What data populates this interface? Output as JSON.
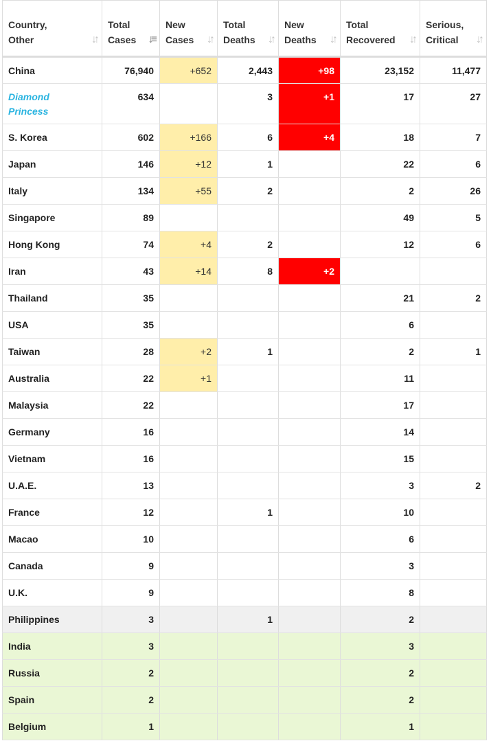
{
  "table": {
    "headers": [
      {
        "line1": "Country,",
        "line2": "Other",
        "icon": "sort-icon",
        "icon_glyph": "↓↑"
      },
      {
        "line1": "Total",
        "line2": "Cases",
        "icon": "sort-desc-icon",
        "icon_glyph": "↓≡"
      },
      {
        "line1": "New",
        "line2": "Cases",
        "icon": "sort-icon",
        "icon_glyph": "↓↑"
      },
      {
        "line1": "Total",
        "line2": "Deaths",
        "icon": "sort-icon",
        "icon_glyph": "↓↑"
      },
      {
        "line1": "New",
        "line2": "Deaths",
        "icon": "sort-icon",
        "icon_glyph": "↓↑"
      },
      {
        "line1": "Total",
        "line2": "Recovered",
        "icon": "sort-icon",
        "icon_glyph": "↓↑"
      },
      {
        "line1": "Serious,",
        "line2": "Critical",
        "icon": "sort-icon",
        "icon_glyph": "↓↑"
      }
    ],
    "rows": [
      {
        "country": "China",
        "total_cases": "76,940",
        "new_cases": "+652",
        "total_deaths": "2,443",
        "new_deaths": "+98",
        "total_recovered": "23,152",
        "serious": "11,477",
        "style": ""
      },
      {
        "country_line1": "Diamond",
        "country_line2": "Princess",
        "is_link": true,
        "total_cases": "634",
        "new_cases": "",
        "total_deaths": "3",
        "new_deaths": "+1",
        "total_recovered": "17",
        "serious": "27",
        "style": ""
      },
      {
        "country": "S. Korea",
        "total_cases": "602",
        "new_cases": "+166",
        "total_deaths": "6",
        "new_deaths": "+4",
        "total_recovered": "18",
        "serious": "7",
        "style": ""
      },
      {
        "country": "Japan",
        "total_cases": "146",
        "new_cases": "+12",
        "total_deaths": "1",
        "new_deaths": "",
        "total_recovered": "22",
        "serious": "6",
        "style": ""
      },
      {
        "country": "Italy",
        "total_cases": "134",
        "new_cases": "+55",
        "total_deaths": "2",
        "new_deaths": "",
        "total_recovered": "2",
        "serious": "26",
        "style": ""
      },
      {
        "country": "Singapore",
        "total_cases": "89",
        "new_cases": "",
        "total_deaths": "",
        "new_deaths": "",
        "total_recovered": "49",
        "serious": "5",
        "style": ""
      },
      {
        "country": "Hong Kong",
        "total_cases": "74",
        "new_cases": "+4",
        "total_deaths": "2",
        "new_deaths": "",
        "total_recovered": "12",
        "serious": "6",
        "style": ""
      },
      {
        "country": "Iran",
        "total_cases": "43",
        "new_cases": "+14",
        "total_deaths": "8",
        "new_deaths": "+2",
        "total_recovered": "",
        "serious": "",
        "style": ""
      },
      {
        "country": "Thailand",
        "total_cases": "35",
        "new_cases": "",
        "total_deaths": "",
        "new_deaths": "",
        "total_recovered": "21",
        "serious": "2",
        "style": ""
      },
      {
        "country": "USA",
        "total_cases": "35",
        "new_cases": "",
        "total_deaths": "",
        "new_deaths": "",
        "total_recovered": "6",
        "serious": "",
        "style": ""
      },
      {
        "country": "Taiwan",
        "total_cases": "28",
        "new_cases": "+2",
        "total_deaths": "1",
        "new_deaths": "",
        "total_recovered": "2",
        "serious": "1",
        "style": ""
      },
      {
        "country": "Australia",
        "total_cases": "22",
        "new_cases": "+1",
        "total_deaths": "",
        "new_deaths": "",
        "total_recovered": "11",
        "serious": "",
        "style": ""
      },
      {
        "country": "Malaysia",
        "total_cases": "22",
        "new_cases": "",
        "total_deaths": "",
        "new_deaths": "",
        "total_recovered": "17",
        "serious": "",
        "style": ""
      },
      {
        "country": "Germany",
        "total_cases": "16",
        "new_cases": "",
        "total_deaths": "",
        "new_deaths": "",
        "total_recovered": "14",
        "serious": "",
        "style": ""
      },
      {
        "country": "Vietnam",
        "total_cases": "16",
        "new_cases": "",
        "total_deaths": "",
        "new_deaths": "",
        "total_recovered": "15",
        "serious": "",
        "style": ""
      },
      {
        "country": "U.A.E.",
        "total_cases": "13",
        "new_cases": "",
        "total_deaths": "",
        "new_deaths": "",
        "total_recovered": "3",
        "serious": "2",
        "style": ""
      },
      {
        "country": "France",
        "total_cases": "12",
        "new_cases": "",
        "total_deaths": "1",
        "new_deaths": "",
        "total_recovered": "10",
        "serious": "",
        "style": ""
      },
      {
        "country": "Macao",
        "total_cases": "10",
        "new_cases": "",
        "total_deaths": "",
        "new_deaths": "",
        "total_recovered": "6",
        "serious": "",
        "style": ""
      },
      {
        "country": "Canada",
        "total_cases": "9",
        "new_cases": "",
        "total_deaths": "",
        "new_deaths": "",
        "total_recovered": "3",
        "serious": "",
        "style": ""
      },
      {
        "country": "U.K.",
        "total_cases": "9",
        "new_cases": "",
        "total_deaths": "",
        "new_deaths": "",
        "total_recovered": "8",
        "serious": "",
        "style": ""
      },
      {
        "country": "Philippines",
        "total_cases": "3",
        "new_cases": "",
        "total_deaths": "1",
        "new_deaths": "",
        "total_recovered": "2",
        "serious": "",
        "style": "gray"
      },
      {
        "country": "India",
        "total_cases": "3",
        "new_cases": "",
        "total_deaths": "",
        "new_deaths": "",
        "total_recovered": "3",
        "serious": "",
        "style": "green"
      },
      {
        "country": "Russia",
        "total_cases": "2",
        "new_cases": "",
        "total_deaths": "",
        "new_deaths": "",
        "total_recovered": "2",
        "serious": "",
        "style": "green"
      },
      {
        "country": "Spain",
        "total_cases": "2",
        "new_cases": "",
        "total_deaths": "",
        "new_deaths": "",
        "total_recovered": "2",
        "serious": "",
        "style": "green"
      },
      {
        "country": "Belgium",
        "total_cases": "1",
        "new_cases": "",
        "total_deaths": "",
        "new_deaths": "",
        "total_recovered": "1",
        "serious": "",
        "style": "green"
      }
    ]
  },
  "colors": {
    "new_cases_highlight": "#ffeeaa",
    "new_deaths_highlight": "#ff0000",
    "link": "#2ab4e0",
    "recovered_row": "#eaf7d5",
    "gray_row": "#f0f0f0"
  }
}
